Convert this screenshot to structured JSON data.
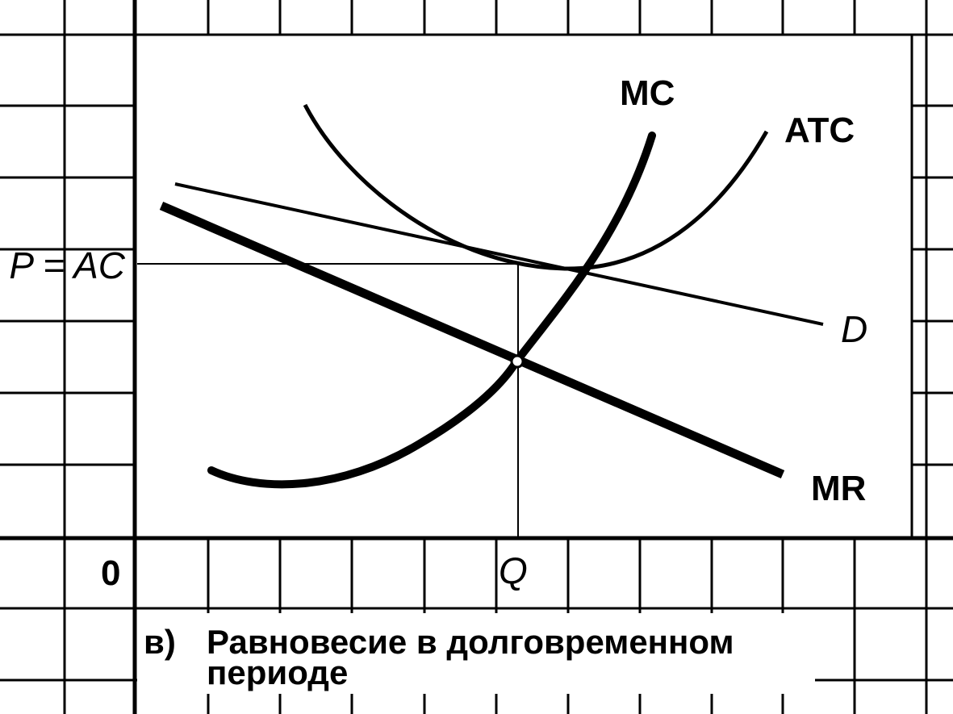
{
  "curves": {
    "mc": "MC",
    "atc": "ATC",
    "demand": "D",
    "mr": "MR"
  },
  "axes": {
    "price_label": "P = AC",
    "origin": "0",
    "quantity_label": "Q"
  },
  "caption": {
    "marker": "в)",
    "lines": [
      "Равновесие в долговременном",
      "периоде"
    ]
  }
}
